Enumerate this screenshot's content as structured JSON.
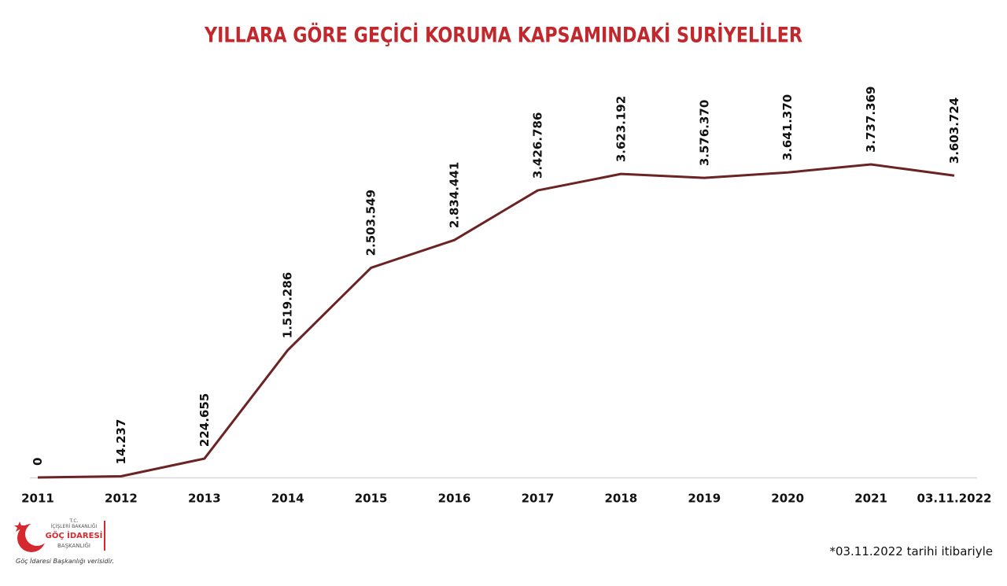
{
  "chart_data": {
    "type": "line",
    "title": "YILLARA GÖRE GEÇİCİ KORUMA KAPSAMINDAKİ SURİYELİLER",
    "categories": [
      "2011",
      "2012",
      "2013",
      "2014",
      "2015",
      "2016",
      "2017",
      "2018",
      "2019",
      "2020",
      "2021",
      "03.11.2022"
    ],
    "values": [
      0,
      14237,
      224655,
      1519286,
      2503549,
      2834441,
      3426786,
      3623192,
      3576370,
      3641370,
      3737369,
      3603724
    ],
    "value_labels": [
      "0",
      "14.237",
      "224.655",
      "1.519.286",
      "2.503.549",
      "2.834.441",
      "3.426.786",
      "3.623.192",
      "3.576.370",
      "3.641.370",
      "3.737.369",
      "3.603.724"
    ],
    "color": "#6b2323"
  },
  "logo": {
    "line1": "T.C.",
    "line2": "İÇİŞLERİ BAKANLIĞI",
    "line3": "GÖÇ İDARESİ",
    "line4": "BAŞKANLIĞI",
    "caption": "Göç İdaresi Başkanlığı verisidir."
  },
  "footnote": "*03.11.2022 tarihi itibariyle"
}
